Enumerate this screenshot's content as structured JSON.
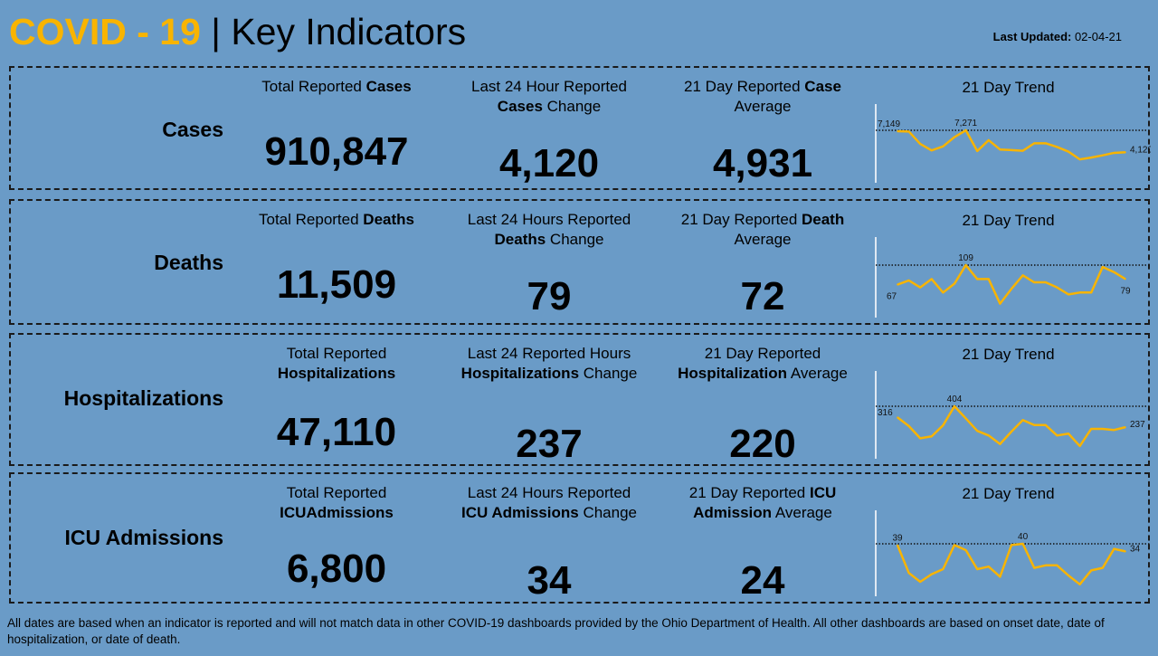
{
  "header": {
    "title_accent": "COVID - 19",
    "title_rest": " | Key Indicators",
    "last_updated_label": "Last Updated:",
    "last_updated_value": " 02-04-21"
  },
  "colors": {
    "background": "#6a9bc7",
    "accent": "#f8b400",
    "trend_line": "#f8b400"
  },
  "cards": [
    {
      "label": "Cases",
      "total": {
        "pre": "Total Reported ",
        "bold": "Cases",
        "post": "",
        "value": "910,847"
      },
      "change": {
        "line1": "Last 24 Hour Reported",
        "bold": "Cases",
        "post": " Change",
        "value": "4,120"
      },
      "average": {
        "pre": "21 Day Reported ",
        "bold": "Case",
        "line2": "Average",
        "value": "4,931"
      },
      "trend_title": "21 Day Trend",
      "labels": {
        "first": "7,149",
        "max": "7,271",
        "last": "4,120"
      }
    },
    {
      "label": "Deaths",
      "total": {
        "pre": "Total Reported ",
        "bold": "Deaths",
        "post": "",
        "value": "11,509"
      },
      "change": {
        "line1": "Last 24 Hours Reported",
        "bold": "Deaths",
        "post": " Change",
        "value": "79"
      },
      "average": {
        "pre": "21 Day Reported ",
        "bold": "Death",
        "line2": "Average",
        "value": "72"
      },
      "trend_title": "21 Day Trend",
      "labels": {
        "first": "67",
        "max": "109",
        "last": "79"
      }
    },
    {
      "label": "Hospitalizations",
      "total": {
        "pre": "Total Reported",
        "bold": "Hospitalizations",
        "post": "",
        "value": "47,110"
      },
      "change": {
        "line1": "Last 24 Reported Hours",
        "bold": "Hospitalizations",
        "post": " Change",
        "value": "237"
      },
      "average": {
        "pre": "21 Day Reported",
        "bold": "Hospitalization",
        "line2": " Average",
        "value": "220"
      },
      "trend_title": "21 Day Trend",
      "labels": {
        "first": "316",
        "max": "404",
        "last": "237"
      }
    },
    {
      "label": "ICU Admissions",
      "total": {
        "pre": "Total Reported ",
        "bold": "ICU",
        "post": "Admissions",
        "value": "6,800"
      },
      "change": {
        "line1": "Last 24 Hours Reported",
        "bold": "ICU Admissions",
        "post": " Change",
        "value": "34"
      },
      "average": {
        "pre": "21 Day Reported ",
        "bold": "ICU",
        "line2": "Admission",
        "line2b": " Average",
        "value": "24"
      },
      "trend_title": "21 Day Trend",
      "labels": {
        "first": "39",
        "max": "40",
        "last": "34"
      }
    }
  ],
  "chart_data": [
    {
      "type": "line",
      "title": "21 Day Trend",
      "reference_line": "max (dotted)",
      "values": [
        7149,
        7100,
        5317,
        4385,
        4962,
        6294,
        7271,
        4296,
        5850,
        4518,
        4430,
        4341,
        5406,
        5406,
        4873,
        4208,
        3097,
        3364,
        3675,
        4030,
        4120
      ]
    },
    {
      "type": "line",
      "title": "21 Day Trend",
      "reference_line": "max (dotted)",
      "values": [
        67,
        76,
        61,
        79,
        50,
        69,
        109,
        79,
        79,
        26,
        58,
        87,
        72,
        72,
        61,
        46,
        50,
        50,
        105,
        94,
        79
      ]
    },
    {
      "type": "line",
      "title": "21 Day Trend",
      "reference_line": "max (dotted)",
      "values": [
        316,
        246,
        149,
        164,
        252,
        404,
        307,
        208,
        171,
        103,
        202,
        294,
        254,
        254,
        171,
        186,
        87,
        224,
        224,
        215,
        237
      ]
    },
    {
      "type": "line",
      "title": "21 Day Trend",
      "reference_line": "max (dotted)",
      "values": [
        39,
        17,
        10,
        16,
        20,
        39,
        35,
        20,
        22,
        14,
        39,
        40,
        21,
        23,
        23,
        15,
        8,
        19,
        21,
        36,
        34
      ]
    }
  ],
  "footer": "All dates are based when an indicator is reported and will not match data in other COVID-19 dashboards provided by the Ohio Department of Health. All other dashboards are based on onset date, date of hospitalization, or date of death."
}
